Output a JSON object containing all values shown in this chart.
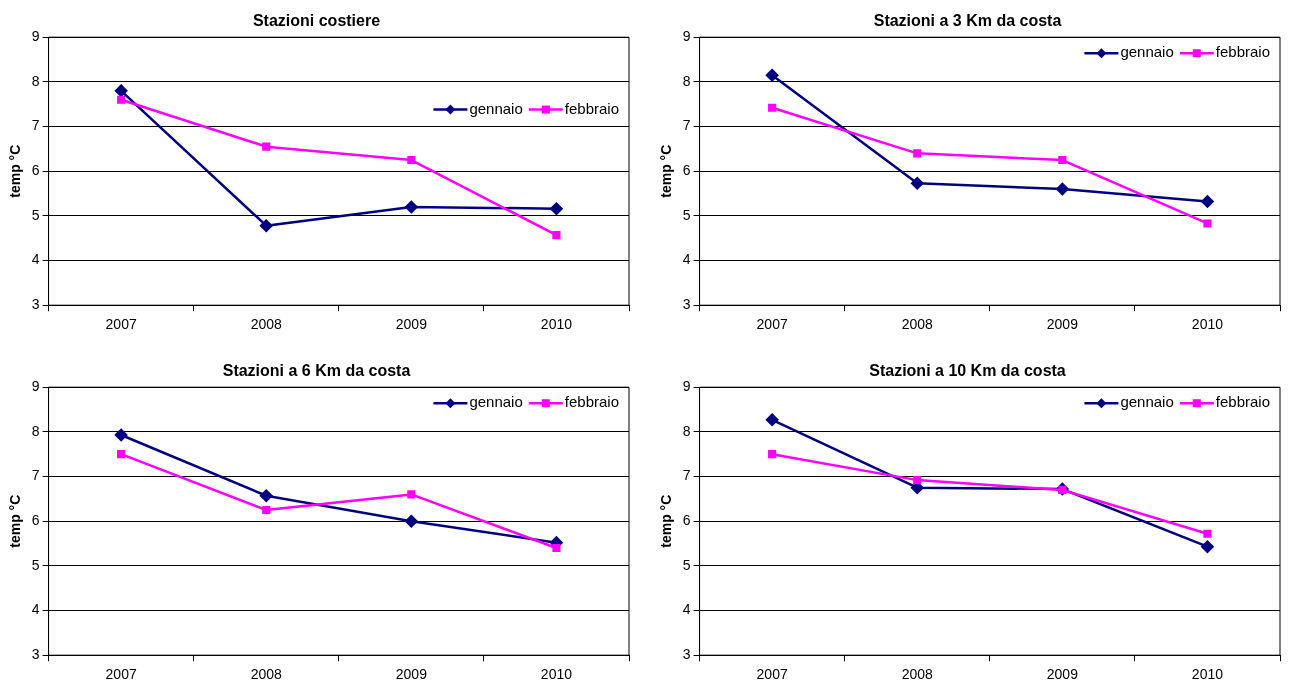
{
  "chart_data": [
    {
      "type": "line",
      "title": "Stazioni costiere",
      "ylabel": "temp °C",
      "categories": [
        "2007",
        "2008",
        "2009",
        "2010"
      ],
      "ylim": [
        3,
        9
      ],
      "yticks": [
        3,
        4,
        5,
        6,
        7,
        8,
        9
      ],
      "grid": "y",
      "legend": "right",
      "line_style": "solid",
      "series": [
        {
          "name": "gennaio",
          "color": "#000080",
          "marker": "diamond",
          "values": [
            7.8,
            4.78,
            5.2,
            5.16
          ]
        },
        {
          "name": "febbraio",
          "color": "#ff00ff",
          "marker": "square",
          "values": [
            7.6,
            6.55,
            6.25,
            4.57
          ]
        }
      ]
    },
    {
      "type": "line",
      "title": "Stazioni a 3 Km da costa",
      "ylabel": "temp °C",
      "categories": [
        "2007",
        "2008",
        "2009",
        "2010"
      ],
      "ylim": [
        3,
        9
      ],
      "yticks": [
        3,
        4,
        5,
        6,
        7,
        8,
        9
      ],
      "grid": "y",
      "legend": "top right",
      "line_style": "solid",
      "series": [
        {
          "name": "gennaio",
          "color": "#000080",
          "marker": "diamond",
          "values": [
            8.15,
            5.73,
            5.6,
            5.32
          ]
        },
        {
          "name": "febbraio",
          "color": "#ff00ff",
          "marker": "square",
          "values": [
            7.42,
            6.4,
            6.25,
            4.83
          ]
        }
      ]
    },
    {
      "type": "line",
      "title": "Stazioni a 6 Km da costa",
      "ylabel": "temp °C",
      "categories": [
        "2007",
        "2008",
        "2009",
        "2010"
      ],
      "ylim": [
        3,
        9
      ],
      "yticks": [
        3,
        4,
        5,
        6,
        7,
        8,
        9
      ],
      "grid": "y",
      "legend": "top right",
      "line_style": "solid",
      "series": [
        {
          "name": "gennaio",
          "color": "#000080",
          "marker": "diamond",
          "values": [
            7.93,
            6.57,
            6.0,
            5.52
          ]
        },
        {
          "name": "febbraio",
          "color": "#ff00ff",
          "marker": "square",
          "values": [
            7.5,
            6.25,
            6.6,
            5.4
          ]
        }
      ]
    },
    {
      "type": "line",
      "title": "Stazioni a 10 Km da costa",
      "ylabel": "temp °C",
      "categories": [
        "2007",
        "2008",
        "2009",
        "2010"
      ],
      "ylim": [
        3,
        9
      ],
      "yticks": [
        3,
        4,
        5,
        6,
        7,
        8,
        9
      ],
      "grid": "y",
      "legend": "top right",
      "line_style": "solid",
      "series": [
        {
          "name": "gennaio",
          "color": "#000080",
          "marker": "diamond",
          "values": [
            8.27,
            6.75,
            6.72,
            5.43
          ]
        },
        {
          "name": "febbraio",
          "color": "#ff00ff",
          "marker": "square",
          "values": [
            7.5,
            6.92,
            6.7,
            5.72
          ]
        }
      ]
    }
  ]
}
